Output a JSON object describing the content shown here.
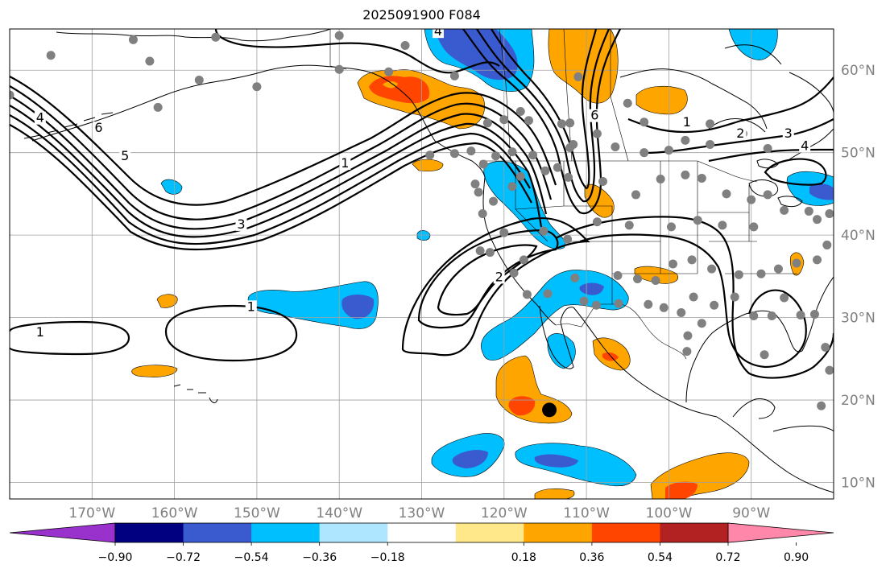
{
  "title": "2025091900 F084",
  "map": {
    "projection": "equirectangular",
    "lon_range": [
      -180,
      -80
    ],
    "lat_range": [
      8,
      65
    ],
    "ocean_color": "#ffffff",
    "land_color": "#ffffff",
    "grid": true,
    "grid_color": "#a0a0a0"
  },
  "lon_ticks": [
    {
      "value": -170,
      "label": "170°W"
    },
    {
      "value": -160,
      "label": "160°W"
    },
    {
      "value": -150,
      "label": "150°W"
    },
    {
      "value": -140,
      "label": "140°W"
    },
    {
      "value": -130,
      "label": "130°W"
    },
    {
      "value": -120,
      "label": "120°W"
    },
    {
      "value": -110,
      "label": "110°W"
    },
    {
      "value": -100,
      "label": "100°W"
    },
    {
      "value": -90,
      "label": "90°W"
    }
  ],
  "lat_ticks": [
    {
      "value": 60,
      "label": "60°N"
    },
    {
      "value": 50,
      "label": "50°N"
    },
    {
      "value": 40,
      "label": "40°N"
    },
    {
      "value": 30,
      "label": "30°N"
    },
    {
      "value": 20,
      "label": "20°N"
    },
    {
      "value": 10,
      "label": "10°N"
    }
  ],
  "colorbar": {
    "extend": "both",
    "min_color": "#9932cc",
    "max_color": "#ff88aa",
    "colors": [
      "#000080",
      "#3a5bd0",
      "#00bfff",
      "#aee6ff",
      "#ffffff",
      "#ffe88a",
      "#ffa500",
      "#ff4500",
      "#b22222"
    ],
    "ticks": [
      {
        "value": -0.9,
        "label": "−0.90"
      },
      {
        "value": -0.72,
        "label": "−0.72"
      },
      {
        "value": -0.54,
        "label": "−0.54"
      },
      {
        "value": -0.36,
        "label": "−0.36"
      },
      {
        "value": -0.18,
        "label": "−0.18"
      },
      {
        "value": 0.18,
        "label": "0.18"
      },
      {
        "value": 0.36,
        "label": "0.36"
      },
      {
        "value": 0.54,
        "label": "0.54"
      },
      {
        "value": 0.72,
        "label": "0.72"
      },
      {
        "value": 0.9,
        "label": "0.90"
      }
    ]
  },
  "contour_labels": [
    {
      "text": "4",
      "lon": -176.3,
      "lat": 53.9
    },
    {
      "text": "6",
      "lon": -169.2,
      "lat": 52.7
    },
    {
      "text": "5",
      "lon": -166.0,
      "lat": 49.3
    },
    {
      "text": "3",
      "lon": -151.9,
      "lat": 41.0
    },
    {
      "text": "1",
      "lon": -139.3,
      "lat": 48.4
    },
    {
      "text": "1",
      "lon": -176.3,
      "lat": 27.9
    },
    {
      "text": "1",
      "lon": -150.7,
      "lat": 31.0
    },
    {
      "text": "2",
      "lon": -120.6,
      "lat": 34.6
    },
    {
      "text": "4",
      "lon": -128.0,
      "lat": 64.4
    },
    {
      "text": "6",
      "lon": -109.0,
      "lat": 54.2
    },
    {
      "text": "1",
      "lon": -97.8,
      "lat": 53.4
    },
    {
      "text": "2",
      "lon": -91.3,
      "lat": 52.0
    },
    {
      "text": "3",
      "lon": -85.5,
      "lat": 52.0
    },
    {
      "text": "4",
      "lon": -83.5,
      "lat": 50.5
    }
  ],
  "stations": [
    [
      -175,
      61.8
    ],
    [
      -165,
      63.7
    ],
    [
      -155,
      64.0
    ],
    [
      -140,
      64.2
    ],
    [
      -132,
      63.0
    ],
    [
      -163,
      61.1
    ],
    [
      -157,
      58.8
    ],
    [
      -150,
      58.0
    ],
    [
      -140,
      60.1
    ],
    [
      -134,
      59.8
    ],
    [
      -126,
      59.3
    ],
    [
      -180,
      57.0
    ],
    [
      -162,
      55.5
    ],
    [
      -111,
      59.2
    ],
    [
      -105,
      56.0
    ],
    [
      -103,
      53.7
    ],
    [
      -108.7,
      52.3
    ],
    [
      -112,
      53.6
    ],
    [
      -120,
      54.0
    ],
    [
      -98,
      51.5
    ],
    [
      -95,
      51.0
    ],
    [
      -91,
      52.3
    ],
    [
      -88,
      50.5
    ],
    [
      -95,
      53.5
    ],
    [
      -100,
      50.3
    ],
    [
      -103,
      50.0
    ],
    [
      -106.5,
      50.7
    ],
    [
      -112,
      50.6
    ],
    [
      -113,
      53.5
    ],
    [
      -118,
      55.0
    ],
    [
      -122,
      53.6
    ],
    [
      -124,
      50.2
    ],
    [
      -126,
      49.9
    ],
    [
      -129,
      49.7
    ],
    [
      -111.6,
      51.0
    ],
    [
      -117,
      53.9
    ],
    [
      -113.5,
      48.2
    ],
    [
      -115,
      47.8
    ],
    [
      -116.5,
      49.7
    ],
    [
      -119,
      50.1
    ],
    [
      -121,
      49.6
    ],
    [
      -122.5,
      48.6
    ],
    [
      -123.5,
      46.2
    ],
    [
      -122.6,
      42.6
    ],
    [
      -123.1,
      45.2
    ],
    [
      -121.3,
      44.1
    ],
    [
      -119,
      45.9
    ],
    [
      -118,
      47.1
    ],
    [
      -112.2,
      47.0
    ],
    [
      -108,
      46.5
    ],
    [
      -104,
      44.9
    ],
    [
      -101,
      46.8
    ],
    [
      -98,
      47.3
    ],
    [
      -96,
      46.9
    ],
    [
      -93,
      45.0
    ],
    [
      -90,
      44.3
    ],
    [
      -88,
      44.9
    ],
    [
      -86,
      43.0
    ],
    [
      -83,
      42.9
    ],
    [
      -82,
      41.9
    ],
    [
      -80.5,
      42.6
    ],
    [
      -89.7,
      41.0
    ],
    [
      -93.5,
      41.2
    ],
    [
      -96.5,
      41.8
    ],
    [
      -99.7,
      41.0
    ],
    [
      -104.8,
      41.2
    ],
    [
      -108.7,
      41.6
    ],
    [
      -112.3,
      39.5
    ],
    [
      -115.2,
      40.5
    ],
    [
      -120,
      40.3
    ],
    [
      -121.7,
      37.9
    ],
    [
      -122.9,
      38.1
    ],
    [
      -117.6,
      37.0
    ],
    [
      -118.8,
      35.4
    ],
    [
      -117.2,
      32.8
    ],
    [
      -114.7,
      32.9
    ],
    [
      -111.4,
      34.8
    ],
    [
      -106.2,
      35.1
    ],
    [
      -103.8,
      34.7
    ],
    [
      -101.6,
      34.5
    ],
    [
      -99.5,
      36.5
    ],
    [
      -97.2,
      37.0
    ],
    [
      -94.8,
      35.9
    ],
    [
      -91.5,
      35.2
    ],
    [
      -88.8,
      35.3
    ],
    [
      -86.7,
      35.9
    ],
    [
      -84.5,
      36.6
    ],
    [
      -82,
      37.0
    ],
    [
      -80.8,
      38.8
    ],
    [
      -97,
      32.5
    ],
    [
      -98.5,
      30.6
    ],
    [
      -100.6,
      31.2
    ],
    [
      -102.5,
      31.6
    ],
    [
      -106.1,
      31.7
    ],
    [
      -108.8,
      31.5
    ],
    [
      -110.3,
      32.0
    ],
    [
      -97.7,
      27.8
    ],
    [
      -97.8,
      25.9
    ],
    [
      -89.7,
      30.2
    ],
    [
      -87.5,
      30.2
    ],
    [
      -84,
      30.3
    ],
    [
      -86,
      32.4
    ],
    [
      -82.3,
      30.4
    ],
    [
      -81,
      26.4
    ],
    [
      -80.5,
      23.6
    ],
    [
      -81.5,
      19.3
    ],
    [
      -92,
      32.5
    ],
    [
      -94.5,
      31.5
    ],
    [
      -96,
      29.3
    ],
    [
      -88.4,
      25.5
    ]
  ],
  "large_marker": {
    "lon": -114.5,
    "lat": 18.8
  }
}
